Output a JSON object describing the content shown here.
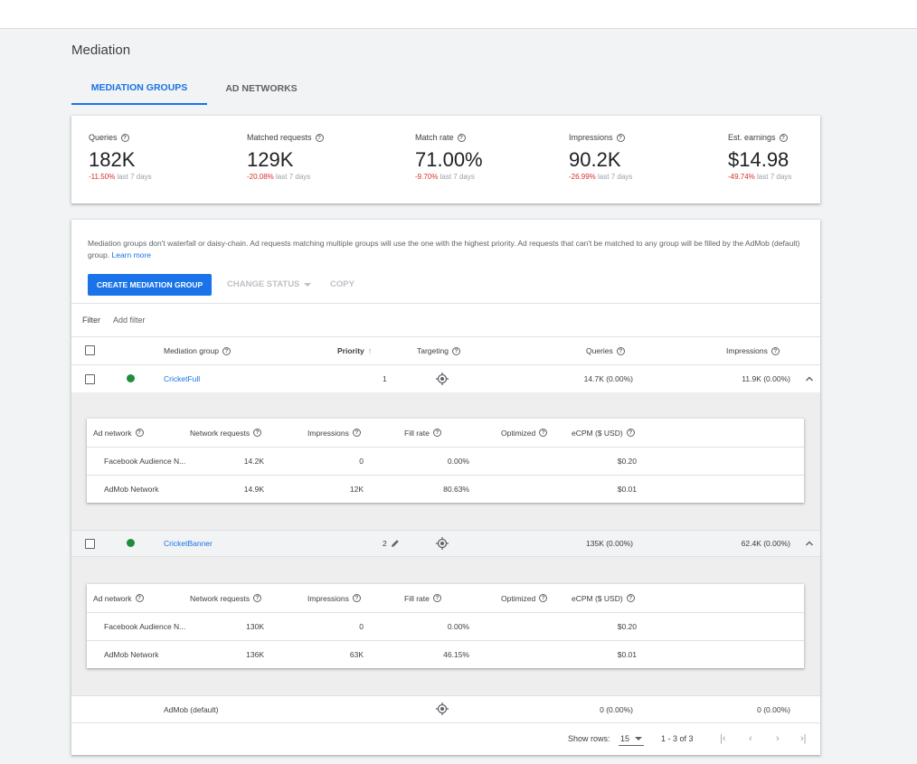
{
  "page": {
    "title": "Mediation"
  },
  "tabs": [
    {
      "label": "MEDIATION GROUPS",
      "active": true
    },
    {
      "label": "AD NETWORKS",
      "active": false
    }
  ],
  "stats": [
    {
      "label": "Queries",
      "value": "182K",
      "change": "-11.50%",
      "period": "last 7 days"
    },
    {
      "label": "Matched requests",
      "value": "129K",
      "change": "-20.08%",
      "period": "last 7 days"
    },
    {
      "label": "Match rate",
      "value": "71.00%",
      "change": "-9.70%",
      "period": "last 7 days"
    },
    {
      "label": "Impressions",
      "value": "90.2K",
      "change": "-26.99%",
      "period": "last 7 days"
    },
    {
      "label": "Est. earnings",
      "value": "$14.98",
      "change": "-49.74%",
      "period": "last 7 days"
    }
  ],
  "notice": {
    "text": "Mediation groups don't waterfall or daisy-chain. Ad requests matching multiple groups will use the one with the highest priority. Ad requests that can't be matched to any group will be filled by the AdMob (default) group.",
    "link": "Learn more"
  },
  "toolbar": {
    "create_label": "CREATE MEDIATION GROUP",
    "status_label": "CHANGE STATUS",
    "copy_label": "COPY"
  },
  "filter": {
    "label": "Filter",
    "add_label": "Add filter"
  },
  "table": {
    "headers": {
      "group": "Mediation group",
      "priority": "Priority",
      "targeting": "Targeting",
      "queries": "Queries",
      "impressions": "Impressions"
    },
    "rows": [
      {
        "name": "CricketFull",
        "priority": "1",
        "queries": "14.7K (0.00%)",
        "impressions": "11.9K (0.00%)",
        "networks": [
          {
            "name": "Facebook Audience N...",
            "requests": "14.2K",
            "impressions": "0",
            "fill_rate": "0.00%",
            "optimized": "",
            "ecpm": "$0.20"
          },
          {
            "name": "AdMob Network",
            "requests": "14.9K",
            "impressions": "12K",
            "fill_rate": "80.63%",
            "optimized": "",
            "ecpm": "$0.01"
          }
        ]
      },
      {
        "name": "CricketBanner",
        "priority": "2",
        "queries": "135K (0.00%)",
        "impressions": "62.4K (0.00%)",
        "networks": [
          {
            "name": "Facebook Audience N...",
            "requests": "130K",
            "impressions": "0",
            "fill_rate": "0.00%",
            "optimized": "",
            "ecpm": "$0.20"
          },
          {
            "name": "AdMob Network",
            "requests": "136K",
            "impressions": "63K",
            "fill_rate": "46.15%",
            "optimized": "",
            "ecpm": "$0.01"
          }
        ]
      }
    ],
    "default_row": {
      "name": "AdMob (default)",
      "queries": "0 (0.00%)",
      "impressions": "0 (0.00%)"
    },
    "sub_headers": {
      "network": "Ad network",
      "requests": "Network requests",
      "impressions": "Impressions",
      "fill_rate": "Fill rate",
      "optimized": "Optimized",
      "ecpm": "eCPM ($ USD)"
    }
  },
  "pagination": {
    "show_rows_label": "Show rows:",
    "rows_value": "15",
    "range": "1 - 3 of 3"
  },
  "colors": {
    "accent": "#1a73e8",
    "negative": "#d93025",
    "status_active": "#1e8e3e"
  },
  "icons": [
    "help-icon",
    "sort-arrow-up-icon",
    "targeting-icon",
    "chevron-up-icon",
    "edit-pencil-icon",
    "first-page-icon",
    "prev-page-icon",
    "next-page-icon",
    "last-page-icon"
  ]
}
